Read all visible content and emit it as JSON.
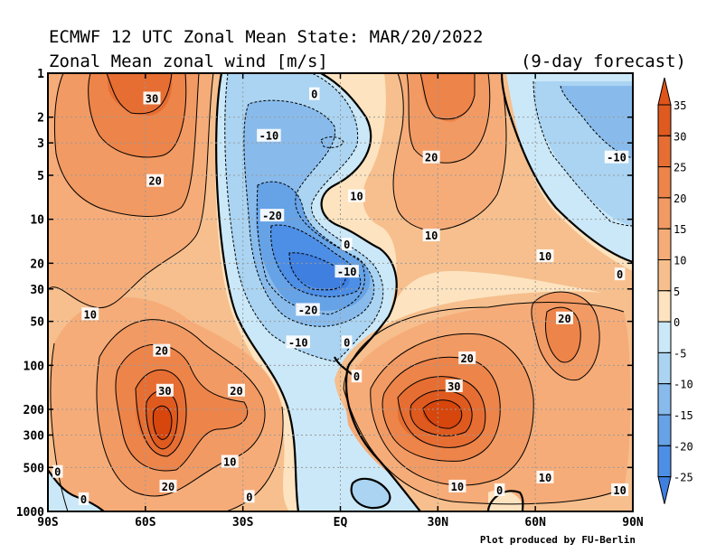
{
  "header": {
    "title": "ECMWF 12 UTC Zonal Mean State: MAR/20/2022",
    "subtitle": "Zonal Mean zonal wind [m/s]",
    "forecast": "(9-day forecast)",
    "credit": "Plot produced by FU-Berlin"
  },
  "chart_data": {
    "type": "heatmap",
    "title": "ECMWF 12 UTC Zonal Mean State: MAR/20/2022",
    "subtitle": "Zonal Mean zonal wind [m/s]",
    "xlabel": "",
    "ylabel": "",
    "x_ticks": [
      {
        "label": "90S",
        "lat": -90
      },
      {
        "label": "60S",
        "lat": -60
      },
      {
        "label": "30S",
        "lat": -30
      },
      {
        "label": "EQ",
        "lat": 0
      },
      {
        "label": "30N",
        "lat": 30
      },
      {
        "label": "60N",
        "lat": 60
      },
      {
        "label": "90N",
        "lat": 90
      }
    ],
    "y_ticks": [
      1,
      2,
      3,
      5,
      10,
      20,
      30,
      50,
      100,
      200,
      300,
      500,
      1000
    ],
    "y_scale": "log",
    "y_reversed": true,
    "xlim": [
      -90,
      90
    ],
    "ylim": [
      1000,
      1
    ],
    "grid": true,
    "colorbar_levels": [
      35,
      30,
      25,
      20,
      15,
      10,
      5,
      0,
      -5,
      -10,
      -15,
      -20,
      -25
    ],
    "contour_labels": [
      {
        "text": "30",
        "lat": -58,
        "p": 1.5
      },
      {
        "text": "20",
        "lat": -57,
        "p": 5.5
      },
      {
        "text": "-10",
        "lat": -22,
        "p": 2.7
      },
      {
        "text": "0",
        "lat": -8,
        "p": 1.4
      },
      {
        "text": "-20",
        "lat": -21,
        "p": 9.5
      },
      {
        "text": "10",
        "lat": 5,
        "p": 7
      },
      {
        "text": "0",
        "lat": 2,
        "p": 15
      },
      {
        "text": "-10",
        "lat": 2,
        "p": 23
      },
      {
        "text": "-20",
        "lat": -10,
        "p": 42
      },
      {
        "text": "-10",
        "lat": -13,
        "p": 70
      },
      {
        "text": "0",
        "lat": 2,
        "p": 70
      },
      {
        "text": "0",
        "lat": 5,
        "p": 120
      },
      {
        "text": "20",
        "lat": 28,
        "p": 3.8
      },
      {
        "text": "10",
        "lat": 28,
        "p": 13
      },
      {
        "text": "10",
        "lat": 63,
        "p": 18
      },
      {
        "text": "0",
        "lat": 86,
        "p": 24
      },
      {
        "text": "-10",
        "lat": 85,
        "p": 3.8
      },
      {
        "text": "20",
        "lat": 69,
        "p": 48
      },
      {
        "text": "20",
        "lat": 39,
        "p": 90
      },
      {
        "text": "30",
        "lat": 35,
        "p": 140
      },
      {
        "text": "10",
        "lat": -77,
        "p": 45
      },
      {
        "text": "20",
        "lat": -55,
        "p": 80
      },
      {
        "text": "30",
        "lat": -54,
        "p": 150
      },
      {
        "text": "20",
        "lat": -32,
        "p": 150
      },
      {
        "text": "10",
        "lat": -34,
        "p": 460
      },
      {
        "text": "20",
        "lat": -53,
        "p": 680
      },
      {
        "text": "0",
        "lat": -87,
        "p": 540
      },
      {
        "text": "0",
        "lat": -79,
        "p": 830
      },
      {
        "text": "0",
        "lat": -28,
        "p": 800
      },
      {
        "text": "10",
        "lat": 36,
        "p": 680
      },
      {
        "text": "0",
        "lat": 49,
        "p": 720
      },
      {
        "text": "10",
        "lat": 63,
        "p": 590
      },
      {
        "text": "10",
        "lat": 86,
        "p": 720
      }
    ],
    "features": [
      {
        "name": "SH polar night jet",
        "lat": -57,
        "p_range": [
          1,
          10
        ],
        "max": 30
      },
      {
        "name": "SH subtropical jet",
        "lat": -53,
        "p": 250,
        "max": 35
      },
      {
        "name": "NH subtropical jet",
        "lat": 35,
        "p": 200,
        "max": 35
      },
      {
        "name": "NH stratospheric jet",
        "lat": 32,
        "p_range": [
          1,
          5
        ],
        "max": 30
      },
      {
        "name": "Tropical stratospheric easterlies",
        "lat": -10,
        "p": 25,
        "min": -25
      },
      {
        "name": "NH high-latitude easterlies",
        "lat": 78,
        "p_range": [
          1,
          10
        ],
        "min": -10
      }
    ]
  }
}
